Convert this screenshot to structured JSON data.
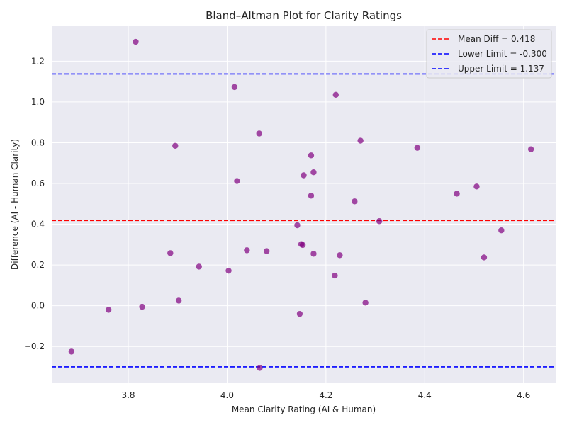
{
  "chart_data": {
    "type": "scatter",
    "title": "Bland–Altman Plot for Clarity Ratings",
    "xlabel": "Mean Clarity Rating (AI & Human)",
    "ylabel": "Difference (AI - Human Clarity)",
    "xlim": [
      3.645,
      4.665
    ],
    "ylim": [
      -0.38,
      1.375
    ],
    "xticks": [
      3.8,
      4.0,
      4.2,
      4.4,
      4.6
    ],
    "xtick_labels": [
      "3.8",
      "4.0",
      "4.2",
      "4.4",
      "4.6"
    ],
    "yticks": [
      -0.2,
      0.0,
      0.2,
      0.4,
      0.6,
      0.8,
      1.0,
      1.2
    ],
    "ytick_labels": [
      "−0.2",
      "0.0",
      "0.2",
      "0.4",
      "0.6",
      "0.8",
      "1.0",
      "1.2"
    ],
    "grid": true,
    "background": "#eaeaf2",
    "gridColor": "#ffffff",
    "point_color": "#800080",
    "points": [
      {
        "x": 3.815,
        "y": 1.295
      },
      {
        "x": 4.015,
        "y": 1.073
      },
      {
        "x": 4.22,
        "y": 1.035
      },
      {
        "x": 4.065,
        "y": 0.845
      },
      {
        "x": 4.27,
        "y": 0.81
      },
      {
        "x": 3.895,
        "y": 0.785
      },
      {
        "x": 4.385,
        "y": 0.775
      },
      {
        "x": 4.615,
        "y": 0.768
      },
      {
        "x": 4.17,
        "y": 0.738
      },
      {
        "x": 4.175,
        "y": 0.655
      },
      {
        "x": 4.155,
        "y": 0.64
      },
      {
        "x": 4.02,
        "y": 0.612
      },
      {
        "x": 4.505,
        "y": 0.585
      },
      {
        "x": 4.465,
        "y": 0.55
      },
      {
        "x": 4.17,
        "y": 0.54
      },
      {
        "x": 4.258,
        "y": 0.512
      },
      {
        "x": 4.308,
        "y": 0.415
      },
      {
        "x": 4.142,
        "y": 0.395
      },
      {
        "x": 4.555,
        "y": 0.37
      },
      {
        "x": 4.15,
        "y": 0.302
      },
      {
        "x": 4.153,
        "y": 0.298
      },
      {
        "x": 4.04,
        "y": 0.272
      },
      {
        "x": 4.08,
        "y": 0.268
      },
      {
        "x": 3.885,
        "y": 0.258
      },
      {
        "x": 4.175,
        "y": 0.255
      },
      {
        "x": 4.228,
        "y": 0.248
      },
      {
        "x": 4.52,
        "y": 0.237
      },
      {
        "x": 3.943,
        "y": 0.192
      },
      {
        "x": 4.003,
        "y": 0.172
      },
      {
        "x": 4.218,
        "y": 0.148
      },
      {
        "x": 3.902,
        "y": 0.025
      },
      {
        "x": 4.28,
        "y": 0.015
      },
      {
        "x": 3.828,
        "y": -0.005
      },
      {
        "x": 3.76,
        "y": -0.02
      },
      {
        "x": 4.147,
        "y": -0.04
      },
      {
        "x": 3.685,
        "y": -0.225
      },
      {
        "x": 4.066,
        "y": -0.305
      }
    ],
    "lines": [
      {
        "name": "Mean Diff = 0.418",
        "y": 0.418,
        "color": "#ff0000"
      },
      {
        "name": "Lower Limit = -0.300",
        "y": -0.3,
        "color": "#0000ff"
      },
      {
        "name": "Upper Limit = 1.137",
        "y": 1.137,
        "color": "#0000ff"
      }
    ],
    "legend_position": "top-right"
  }
}
